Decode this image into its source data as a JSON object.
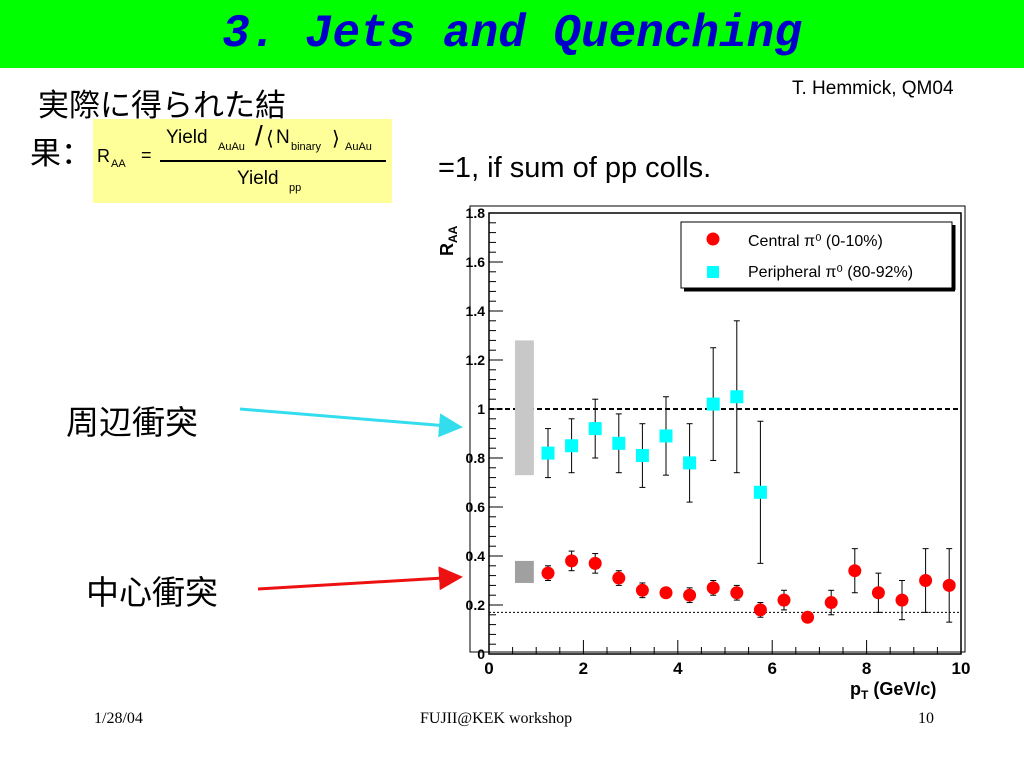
{
  "slide": {
    "title": "3. Jets and Quenching",
    "author": "T. Hemmick, QM04",
    "caption_line1": "実際に得られた結",
    "caption_line2": "果：",
    "note": "=1,  if sum of pp colls.",
    "label_peripheral": "周辺衝突",
    "label_central": "中心衝突",
    "footer_date": "1/28/04",
    "footer_center": "FUJII@KEK workshop",
    "footer_page": "10",
    "accent_color": "#00ff00",
    "title_color": "#0000cc",
    "formula_bg": "#ffff99"
  },
  "formula": {
    "lhs": "R",
    "lhs_sub": "AA",
    "equals": "=",
    "num": "Yield",
    "num_sub": "AuAu",
    "slash": "/",
    "lang": "⟨",
    "nbin": "N",
    "nbin_sub": "binary",
    "rang": "⟩",
    "rang_sub": "AuAu",
    "den": "Yield",
    "den_sub": "pp"
  },
  "chart_data": {
    "type": "scatter",
    "ylabel_main": "R",
    "ylabel_sub": "AA",
    "xlabel_main": "p",
    "xlabel_sub": "T",
    "xlabel_rest": " (GeV/c)",
    "xlim": [
      0,
      10
    ],
    "ylim": [
      0,
      1.8
    ],
    "x_ticks": [
      "0",
      "2",
      "4",
      "6",
      "8",
      "10"
    ],
    "y_ticks": [
      "0",
      "0.2",
      "0.4",
      "0.6",
      "0.8",
      "1",
      "1.2",
      "1.4",
      "1.6",
      "1.8"
    ],
    "reference_line": 1.0,
    "baseline_line": 0.17,
    "grid": false,
    "legend_position": "top-right",
    "series": [
      {
        "name": "Central π⁰ (0-10%)",
        "marker": "circle",
        "color": "#ff0000",
        "x": [
          1.25,
          1.75,
          2.25,
          2.75,
          3.25,
          3.75,
          4.25,
          4.75,
          5.25,
          5.75,
          6.25,
          6.75,
          7.25,
          7.75,
          8.25,
          8.75,
          9.25,
          9.75
        ],
        "y": [
          0.33,
          0.38,
          0.37,
          0.31,
          0.26,
          0.25,
          0.24,
          0.27,
          0.25,
          0.18,
          0.22,
          0.15,
          0.21,
          0.34,
          0.25,
          0.22,
          0.3,
          0.28
        ],
        "err": [
          0.03,
          0.04,
          0.04,
          0.03,
          0.03,
          0.02,
          0.03,
          0.03,
          0.03,
          0.03,
          0.04,
          0.02,
          0.05,
          0.09,
          0.08,
          0.08,
          0.13,
          0.15
        ],
        "sys_band": [
          0.29,
          0.38
        ]
      },
      {
        "name": "Peripheral π⁰ (80-92%)",
        "marker": "square",
        "color": "#00ffff",
        "x": [
          1.25,
          1.75,
          2.25,
          2.75,
          3.25,
          3.75,
          4.25,
          4.75,
          5.25,
          5.75
        ],
        "y": [
          0.82,
          0.85,
          0.92,
          0.86,
          0.81,
          0.89,
          0.78,
          1.02,
          1.05,
          0.66
        ],
        "err": [
          0.1,
          0.11,
          0.12,
          0.12,
          0.13,
          0.16,
          0.16,
          0.23,
          0.31,
          0.29
        ],
        "sys_band": [
          0.73,
          1.28
        ]
      }
    ]
  }
}
